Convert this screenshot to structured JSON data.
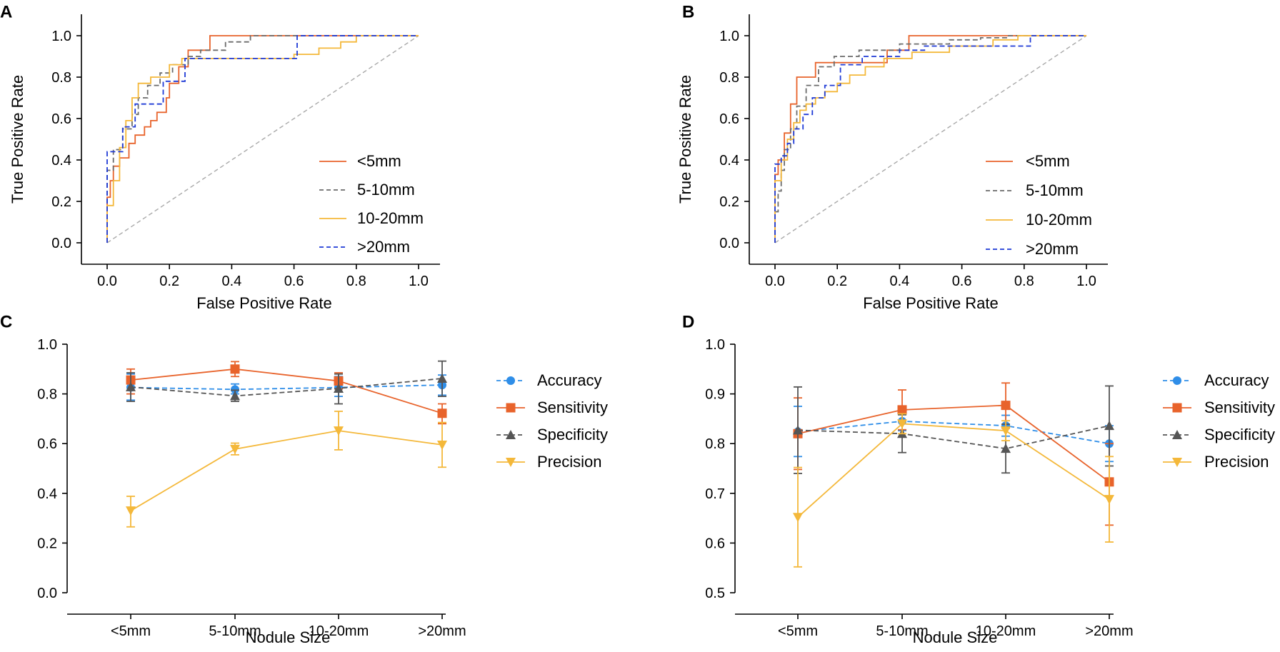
{
  "chart_data": [
    {
      "panel": "A",
      "type": "line",
      "subtype": "roc",
      "xlabel": "False Positive Rate",
      "ylabel": "True Positive Rate",
      "xlim": [
        0,
        1
      ],
      "ylim": [
        0,
        1
      ],
      "xticks": [
        "0.0",
        "0.2",
        "0.4",
        "0.6",
        "0.8",
        "1.0"
      ],
      "yticks": [
        "0.0",
        "0.2",
        "0.4",
        "0.6",
        "0.8",
        "1.0"
      ],
      "legend_position": "bottom-right",
      "reference_line": {
        "x": [
          0,
          1
        ],
        "y": [
          0,
          1
        ],
        "color": "#a9a9a9",
        "dash": true
      },
      "series": [
        {
          "name": "<5mm",
          "color": "#e8632b",
          "dash": false,
          "x": [
            0,
            0,
            0.01,
            0.01,
            0.02,
            0.02,
            0.04,
            0.04,
            0.07,
            0.07,
            0.09,
            0.09,
            0.12,
            0.12,
            0.14,
            0.14,
            0.16,
            0.16,
            0.19,
            0.19,
            0.2,
            0.2,
            0.23,
            0.23,
            0.26,
            0.26,
            0.33,
            0.33,
            1.0
          ],
          "y": [
            0,
            0.22,
            0.22,
            0.3,
            0.3,
            0.37,
            0.37,
            0.41,
            0.41,
            0.48,
            0.48,
            0.52,
            0.52,
            0.56,
            0.56,
            0.59,
            0.59,
            0.63,
            0.63,
            0.7,
            0.7,
            0.77,
            0.77,
            0.85,
            0.85,
            0.93,
            0.93,
            1.0,
            1.0
          ]
        },
        {
          "name": "5-10mm",
          "color": "#6b6b6b",
          "dash": true,
          "x": [
            0,
            0,
            0.02,
            0.02,
            0.05,
            0.05,
            0.08,
            0.08,
            0.1,
            0.1,
            0.13,
            0.13,
            0.17,
            0.17,
            0.21,
            0.21,
            0.26,
            0.26,
            0.3,
            0.3,
            0.38,
            0.38,
            0.46,
            0.46,
            1.0
          ],
          "y": [
            0,
            0.35,
            0.35,
            0.45,
            0.45,
            0.55,
            0.55,
            0.62,
            0.62,
            0.7,
            0.7,
            0.76,
            0.76,
            0.82,
            0.82,
            0.86,
            0.86,
            0.9,
            0.9,
            0.93,
            0.93,
            0.97,
            0.97,
            1.0,
            1.0
          ]
        },
        {
          "name": "10-20mm",
          "color": "#f4b83a",
          "dash": false,
          "x": [
            0,
            0,
            0.02,
            0.02,
            0.04,
            0.04,
            0.06,
            0.06,
            0.08,
            0.08,
            0.1,
            0.1,
            0.14,
            0.14,
            0.2,
            0.2,
            0.24,
            0.24,
            0.6,
            0.6,
            0.68,
            0.68,
            0.75,
            0.75,
            0.8,
            0.8,
            1.0
          ],
          "y": [
            0,
            0.18,
            0.18,
            0.3,
            0.3,
            0.46,
            0.46,
            0.59,
            0.59,
            0.7,
            0.7,
            0.77,
            0.77,
            0.8,
            0.8,
            0.86,
            0.86,
            0.89,
            0.89,
            0.91,
            0.91,
            0.94,
            0.94,
            0.97,
            0.97,
            1.0,
            1.0
          ]
        },
        {
          "name": ">20mm",
          "color": "#1f3ad6",
          "dash": true,
          "x": [
            0,
            0,
            0.05,
            0.05,
            0.09,
            0.09,
            0.11,
            0.11,
            0.18,
            0.18,
            0.25,
            0.25,
            0.61,
            0.61,
            1.0
          ],
          "y": [
            0,
            0.44,
            0.44,
            0.56,
            0.56,
            0.67,
            0.67,
            0.67,
            0.67,
            0.78,
            0.78,
            0.89,
            0.89,
            1.0,
            1.0
          ]
        }
      ],
      "legend": [
        "<5mm",
        "5-10mm",
        "10-20mm",
        ">20mm"
      ]
    },
    {
      "panel": "B",
      "type": "line",
      "subtype": "roc",
      "xlabel": "False Positive Rate",
      "ylabel": "True Positive Rate",
      "xlim": [
        0,
        1
      ],
      "ylim": [
        0,
        1
      ],
      "xticks": [
        "0.0",
        "0.2",
        "0.4",
        "0.6",
        "0.8",
        "1.0"
      ],
      "yticks": [
        "0.0",
        "0.2",
        "0.4",
        "0.6",
        "0.8",
        "1.0"
      ],
      "legend_position": "bottom-right",
      "reference_line": {
        "x": [
          0,
          1
        ],
        "y": [
          0,
          1
        ],
        "color": "#a9a9a9",
        "dash": true
      },
      "series": [
        {
          "name": "<5mm",
          "color": "#e8632b",
          "dash": false,
          "x": [
            0,
            0,
            0.01,
            0.01,
            0.03,
            0.03,
            0.05,
            0.05,
            0.07,
            0.07,
            0.13,
            0.13,
            0.36,
            0.36,
            0.43,
            0.43,
            1.0
          ],
          "y": [
            0,
            0.33,
            0.33,
            0.4,
            0.4,
            0.53,
            0.53,
            0.67,
            0.67,
            0.8,
            0.8,
            0.87,
            0.87,
            0.93,
            0.93,
            1.0,
            1.0
          ]
        },
        {
          "name": "5-10mm",
          "color": "#6b6b6b",
          "dash": true,
          "x": [
            0,
            0,
            0.01,
            0.01,
            0.02,
            0.02,
            0.03,
            0.03,
            0.05,
            0.05,
            0.07,
            0.07,
            0.1,
            0.1,
            0.14,
            0.14,
            0.19,
            0.19,
            0.27,
            0.27,
            0.4,
            0.4,
            0.56,
            0.56,
            0.66,
            0.66,
            0.75,
            0.75,
            1.0
          ],
          "y": [
            0,
            0.15,
            0.15,
            0.25,
            0.25,
            0.35,
            0.35,
            0.45,
            0.45,
            0.55,
            0.55,
            0.66,
            0.66,
            0.76,
            0.76,
            0.85,
            0.85,
            0.9,
            0.9,
            0.93,
            0.93,
            0.96,
            0.96,
            0.98,
            0.98,
            0.99,
            0.99,
            1.0,
            1.0
          ]
        },
        {
          "name": "10-20mm",
          "color": "#f4b83a",
          "dash": false,
          "x": [
            0,
            0,
            0.02,
            0.02,
            0.04,
            0.04,
            0.06,
            0.06,
            0.08,
            0.08,
            0.1,
            0.1,
            0.13,
            0.13,
            0.16,
            0.16,
            0.2,
            0.2,
            0.24,
            0.24,
            0.29,
            0.29,
            0.35,
            0.35,
            0.44,
            0.44,
            0.56,
            0.56,
            0.7,
            0.7,
            0.78,
            0.78,
            1.0
          ],
          "y": [
            0,
            0.3,
            0.3,
            0.4,
            0.4,
            0.5,
            0.5,
            0.58,
            0.58,
            0.64,
            0.64,
            0.67,
            0.67,
            0.7,
            0.7,
            0.73,
            0.73,
            0.77,
            0.77,
            0.81,
            0.81,
            0.85,
            0.85,
            0.89,
            0.89,
            0.92,
            0.92,
            0.95,
            0.95,
            0.98,
            0.98,
            1.0,
            1.0
          ]
        },
        {
          "name": ">20mm",
          "color": "#1f3ad6",
          "dash": true,
          "x": [
            0,
            0,
            0.02,
            0.02,
            0.04,
            0.04,
            0.06,
            0.06,
            0.09,
            0.09,
            0.12,
            0.12,
            0.16,
            0.16,
            0.21,
            0.21,
            0.28,
            0.28,
            0.4,
            0.4,
            0.48,
            0.48,
            0.82,
            0.82,
            1.0
          ],
          "y": [
            0,
            0.38,
            0.38,
            0.42,
            0.42,
            0.48,
            0.48,
            0.55,
            0.55,
            0.62,
            0.62,
            0.7,
            0.7,
            0.76,
            0.76,
            0.86,
            0.86,
            0.9,
            0.9,
            0.93,
            0.93,
            0.95,
            0.95,
            1.0,
            1.0
          ]
        }
      ],
      "legend": [
        "<5mm",
        "5-10mm",
        "10-20mm",
        ">20mm"
      ]
    },
    {
      "panel": "C",
      "type": "line",
      "subtype": "errorbar",
      "xlabel": "Nodule Size",
      "ylabel": "",
      "categories": [
        "<5mm",
        "5-10mm",
        "10-20mm",
        ">20mm"
      ],
      "ylim": [
        0,
        1
      ],
      "yticks": [
        "0.0",
        "0.2",
        "0.4",
        "0.6",
        "0.8",
        "1.0"
      ],
      "legend_position": "right",
      "series": [
        {
          "name": "Accuracy",
          "color": "#2f8ee8",
          "marker": "circle",
          "dash": true,
          "values": [
            0.826,
            0.818,
            0.826,
            0.836
          ],
          "lower": [
            0.775,
            0.8,
            0.79,
            0.795
          ],
          "upper": [
            0.88,
            0.84,
            0.87,
            0.876
          ]
        },
        {
          "name": "Sensitivity",
          "color": "#e8632b",
          "marker": "square",
          "dash": false,
          "values": [
            0.856,
            0.9,
            0.852,
            0.722
          ],
          "lower": [
            0.8,
            0.87,
            0.82,
            0.68
          ],
          "upper": [
            0.9,
            0.93,
            0.885,
            0.76
          ]
        },
        {
          "name": "Specificity",
          "color": "#555555",
          "marker": "triangle-up",
          "dash": true,
          "values": [
            0.828,
            0.792,
            0.822,
            0.862
          ],
          "lower": [
            0.77,
            0.77,
            0.76,
            0.79
          ],
          "upper": [
            0.885,
            0.815,
            0.88,
            0.932
          ]
        },
        {
          "name": "Precision",
          "color": "#f4b83a",
          "marker": "triangle-down",
          "dash": false,
          "values": [
            0.33,
            0.578,
            0.652,
            0.595
          ],
          "lower": [
            0.265,
            0.555,
            0.575,
            0.505
          ],
          "upper": [
            0.388,
            0.602,
            0.73,
            0.685
          ]
        }
      ],
      "legend": [
        "Accuracy",
        "Sensitivity",
        "Specificity",
        "Precision"
      ]
    },
    {
      "panel": "D",
      "type": "line",
      "subtype": "errorbar",
      "xlabel": "Nodule Size",
      "ylabel": "",
      "categories": [
        "<5mm",
        "5-10mm",
        "10-20mm",
        ">20mm"
      ],
      "ylim": [
        0.5,
        1
      ],
      "yticks": [
        "0.5",
        "0.6",
        "0.7",
        "0.8",
        "0.9",
        "1.0"
      ],
      "legend_position": "right",
      "series": [
        {
          "name": "Accuracy",
          "color": "#2f8ee8",
          "marker": "circle",
          "dash": true,
          "values": [
            0.824,
            0.845,
            0.836,
            0.8
          ],
          "lower": [
            0.774,
            0.826,
            0.815,
            0.764
          ],
          "upper": [
            0.875,
            0.864,
            0.857,
            0.836
          ]
        },
        {
          "name": "Sensitivity",
          "color": "#e8632b",
          "marker": "square",
          "dash": false,
          "values": [
            0.82,
            0.868,
            0.877,
            0.723
          ],
          "lower": [
            0.748,
            0.828,
            0.831,
            0.636
          ],
          "upper": [
            0.892,
            0.908,
            0.922,
            0.8
          ]
        },
        {
          "name": "Specificity",
          "color": "#555555",
          "marker": "triangle-up",
          "dash": true,
          "values": [
            0.827,
            0.82,
            0.79,
            0.836
          ],
          "lower": [
            0.74,
            0.782,
            0.741,
            0.755
          ],
          "upper": [
            0.914,
            0.858,
            0.839,
            0.916
          ]
        },
        {
          "name": "Precision",
          "color": "#f4b83a",
          "marker": "triangle-down",
          "dash": false,
          "values": [
            0.652,
            0.84,
            0.826,
            0.688
          ],
          "lower": [
            0.552,
            0.82,
            0.806,
            0.602
          ],
          "upper": [
            0.752,
            0.86,
            0.846,
            0.774
          ]
        }
      ],
      "legend": [
        "Accuracy",
        "Sensitivity",
        "Specificity",
        "Precision"
      ]
    }
  ]
}
